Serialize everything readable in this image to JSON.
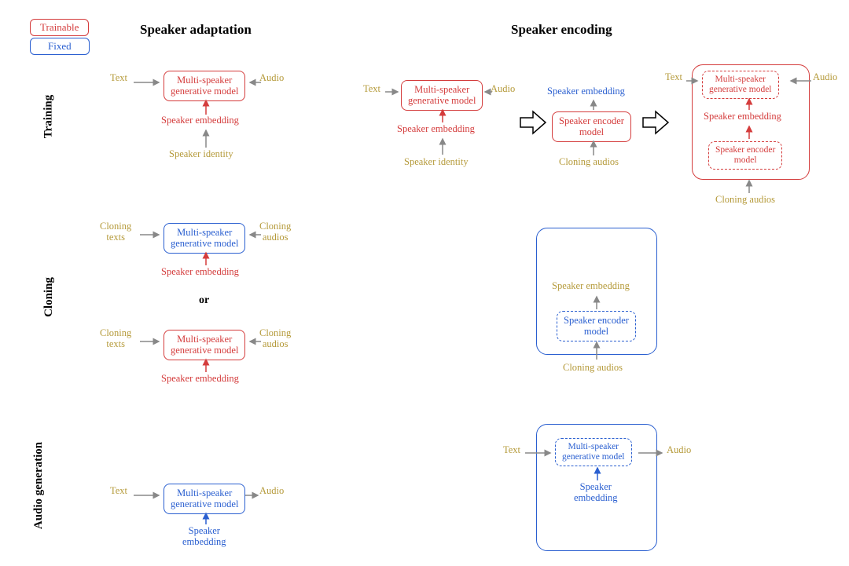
{
  "colors": {
    "red": "#d43c3c",
    "blue": "#2a5fd0",
    "olive": "#b59a3a",
    "gray": "#888888",
    "black": "#000000",
    "white": "#ffffff"
  },
  "legend": {
    "trainable": "Trainable",
    "fixed": "Fixed"
  },
  "columns": {
    "adapt": "Speaker adaptation",
    "encode": "Speaker encoding"
  },
  "rows": {
    "training": "Training",
    "cloning": "Cloning",
    "audiogen": "Audio generation"
  },
  "labels": {
    "text": "Text",
    "audio": "Audio",
    "msgm": "Multi-speaker\ngenerative model",
    "spk_emb": "Speaker embedding",
    "spk_emb_2line": "Speaker\nembedding",
    "spk_id": "Speaker identity",
    "cloning_texts": "Cloning\ntexts",
    "cloning_audios": "Cloning\naudios",
    "cloning_audios_1line": "Cloning audios",
    "or": "or",
    "sem": "Speaker encoder\nmodel"
  },
  "style": {
    "font_family": "Georgia, 'Times New Roman', serif",
    "font_size_label": 12.5,
    "font_size_header": 17,
    "font_size_row": 15,
    "border_radius_box": 8,
    "border_radius_bigbox": 14,
    "arrow_stroke_width": 1.5
  }
}
